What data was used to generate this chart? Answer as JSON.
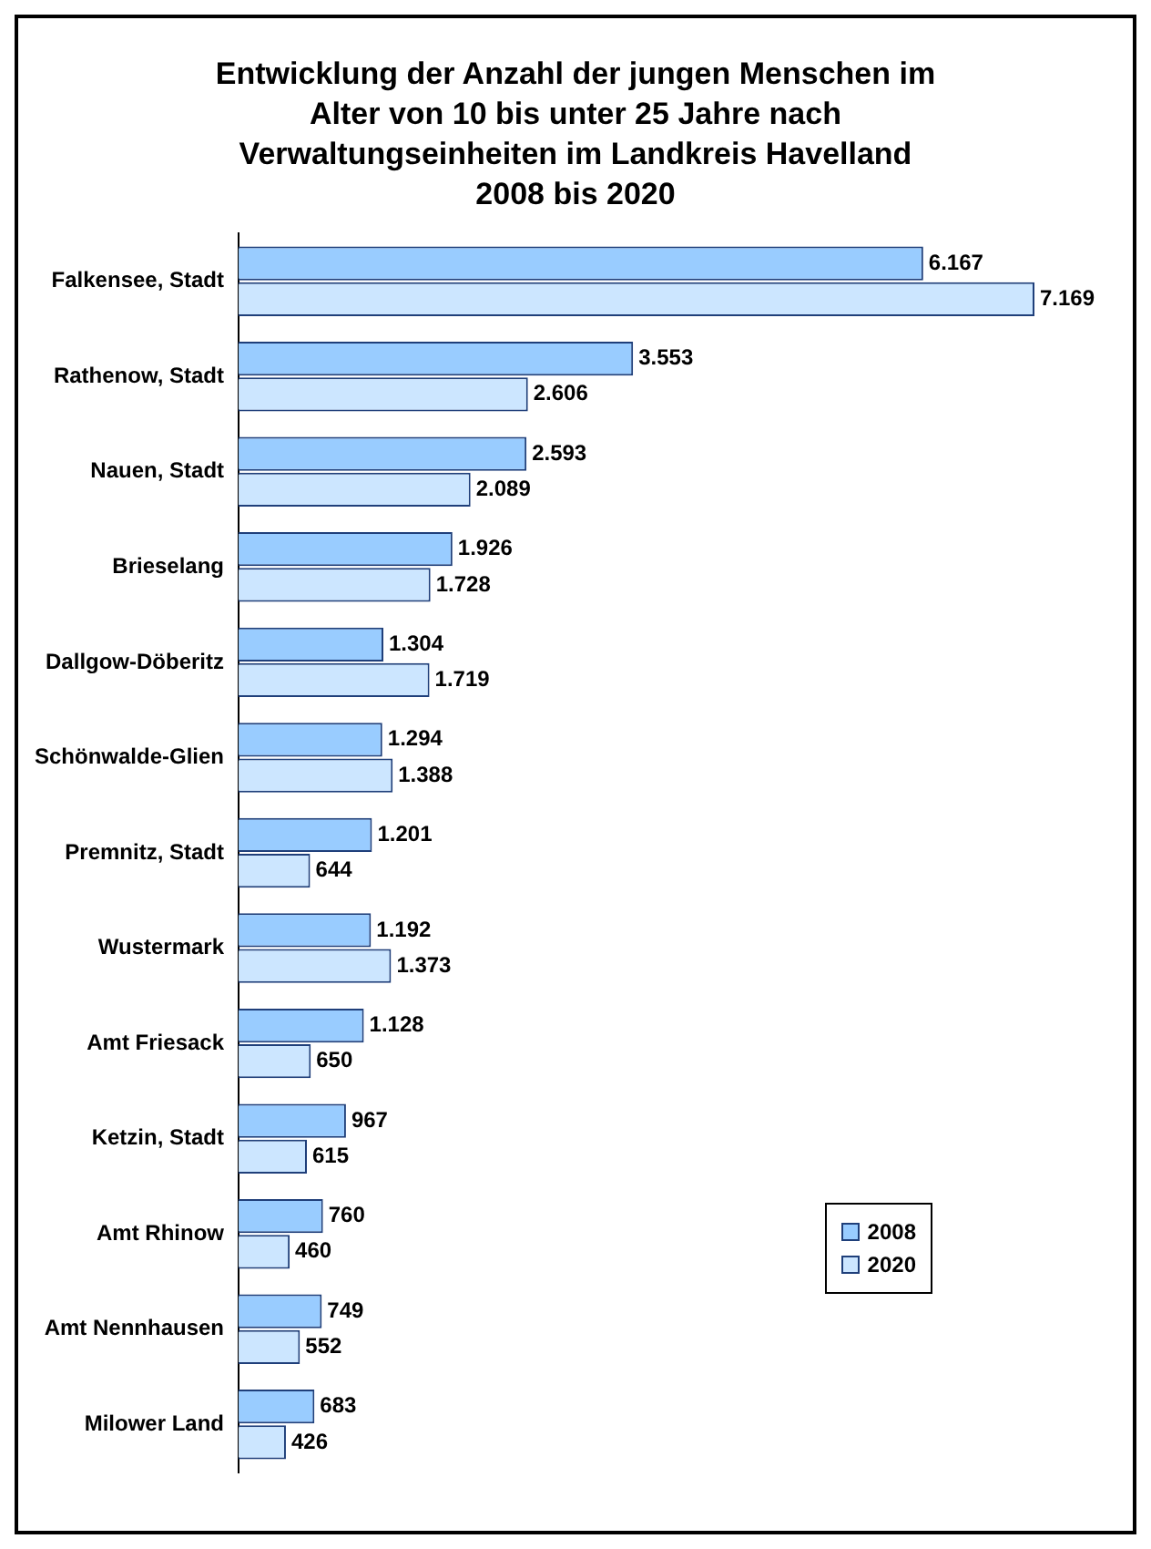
{
  "chart_data": {
    "type": "bar",
    "orientation": "horizontal",
    "title": "Entwicklung der Anzahl der jungen Menschen im Alter von 10 bis unter 25 Jahre nach Verwaltungseinheiten im Landkreis Havelland 2008 bis 2020",
    "categories": [
      "Falkensee, Stadt",
      "Rathenow, Stadt",
      "Nauen, Stadt",
      "Brieselang",
      "Dallgow-Döberitz",
      "Schönwalde-Glien",
      "Premnitz, Stadt",
      "Wustermark",
      "Amt Friesack",
      "Ketzin, Stadt",
      "Amt Rhinow",
      "Amt Nennhausen",
      "Milower Land"
    ],
    "series": [
      {
        "name": "2008",
        "color": "#99ccff",
        "values": [
          6167,
          3553,
          2593,
          1926,
          1304,
          1294,
          1201,
          1192,
          1128,
          967,
          760,
          749,
          683
        ],
        "value_labels": [
          "6.167",
          "3.553",
          "2.593",
          "1.926",
          "1.304",
          "1.294",
          "1.201",
          "1.192",
          "1.128",
          "967",
          "760",
          "749",
          "683"
        ]
      },
      {
        "name": "2020",
        "color": "#cce6ff",
        "values": [
          7169,
          2606,
          2089,
          1728,
          1719,
          1388,
          644,
          1373,
          650,
          615,
          460,
          552,
          426
        ],
        "value_labels": [
          "7.169",
          "2.606",
          "2.089",
          "1.728",
          "1.719",
          "1.388",
          "644",
          "1.373",
          "650",
          "615",
          "460",
          "552",
          "426"
        ]
      }
    ],
    "legend": "bottom right",
    "grid": false
  }
}
